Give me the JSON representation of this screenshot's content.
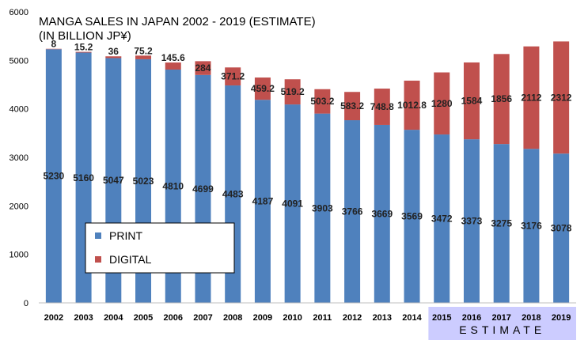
{
  "chart_data": {
    "type": "bar",
    "stacked": true,
    "title": "MANGA SALES IN JAPAN 2002 - 2019 (ESTIMATE)",
    "subtitle": "(IN BILLION JP¥)",
    "categories": [
      "2002",
      "2003",
      "2004",
      "2005",
      "2006",
      "2007",
      "2008",
      "2009",
      "2010",
      "2011",
      "2012",
      "2013",
      "2014",
      "2015",
      "2016",
      "2017",
      "2018",
      "2019"
    ],
    "series": [
      {
        "name": "PRINT",
        "color": "#4f81bd",
        "values": [
          5230,
          5160,
          5047,
          5023,
          4810,
          4699,
          4483,
          4187,
          4091,
          3903,
          3766,
          3669,
          3569,
          3472,
          3373,
          3275,
          3176,
          3078
        ]
      },
      {
        "name": "DIGITAL",
        "color": "#c0504d",
        "values": [
          8,
          15.2,
          36,
          75.2,
          145.6,
          284,
          371.2,
          459.2,
          519.2,
          503.2,
          583.2,
          748.8,
          1012.8,
          1280,
          1584,
          1856,
          2112,
          2312
        ]
      }
    ],
    "yticks": [
      0,
      1000,
      2000,
      3000,
      4000,
      5000,
      6000
    ],
    "ylim": [
      0,
      6000
    ],
    "legend_position": "lower-left",
    "estimate_label": "ESTIMATE",
    "estimate_highlight_color": "#ccccff",
    "grid": false
  }
}
